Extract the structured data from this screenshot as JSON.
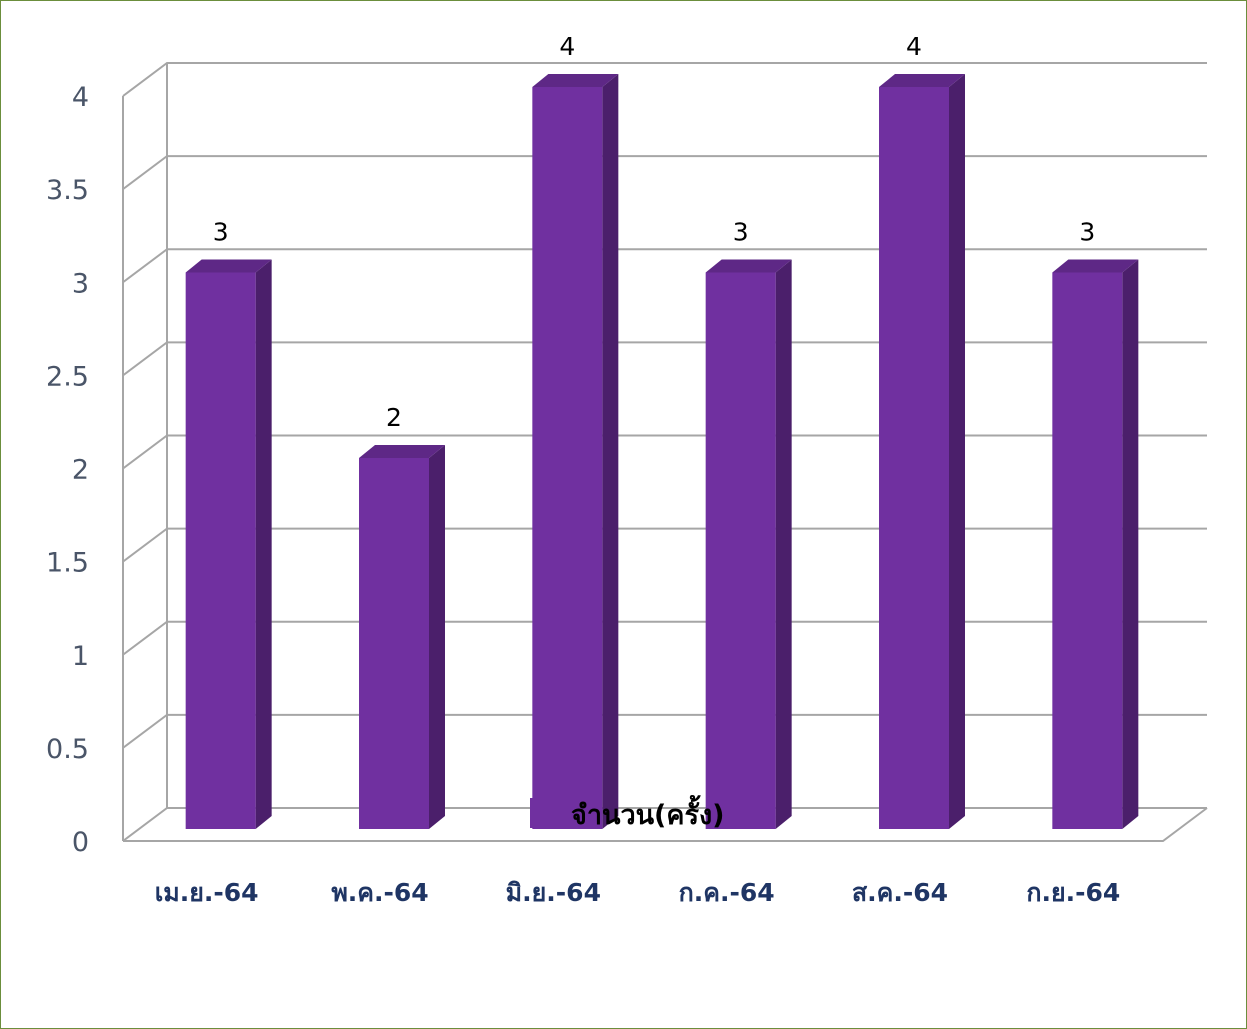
{
  "chart_data": {
    "type": "bar",
    "style": "3d-column",
    "categories": [
      "เม.ย.-64",
      "พ.ค.-64",
      "มิ.ย.-64",
      "ก.ค.-64",
      "ส.ค.-64",
      "ก.ย.-64"
    ],
    "series": [
      {
        "name": "จำนวน(ครั้ง)",
        "values": [
          3,
          2,
          4,
          3,
          4,
          3
        ]
      }
    ],
    "ylim": [
      0,
      4
    ],
    "yticks": [
      0,
      0.5,
      1,
      1.5,
      2,
      2.5,
      3,
      3.5,
      4
    ],
    "ytick_labels": [
      "0",
      "0.5",
      "1",
      "1.5",
      "2",
      "2.5",
      "3",
      "3.5",
      "4"
    ],
    "data_labels": [
      "3",
      "2",
      "4",
      "3",
      "4",
      "3"
    ],
    "grid": true,
    "legend_position": "bottom",
    "colors": {
      "bar_front": "#7030a0",
      "bar_side": "#4b1f6b",
      "bar_top": "#5e2886",
      "grid": "#a6a6a6",
      "frame_border": "#6b8e3c"
    }
  }
}
